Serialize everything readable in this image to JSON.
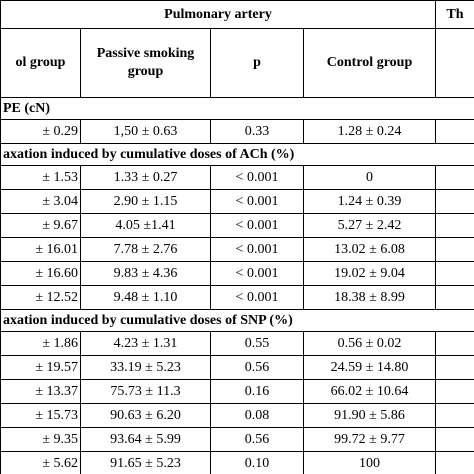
{
  "header": {
    "title": "Pulmonary artery",
    "title2": "Th"
  },
  "columns": [
    "ol group",
    "Passive smoking group",
    "p",
    "Control group"
  ],
  "sections": [
    {
      "title": "PE (cN)",
      "rows": [
        [
          "± 0.29",
          "1,50 ± 0.63",
          "0.33",
          "1.28 ± 0.24"
        ]
      ]
    },
    {
      "title": "axation induced by cumulative doses of ACh (%)",
      "rows": [
        [
          "± 1.53",
          "1.33 ± 0.27",
          "< 0.001",
          "0"
        ],
        [
          "± 3.04",
          "2.90 ± 1.15",
          "< 0.001",
          "1.24 ± 0.39"
        ],
        [
          "± 9.67",
          "4.05 ±1.41",
          "< 0.001",
          "5.27 ± 2.42"
        ],
        [
          "± 16.01",
          "7.78 ± 2.76",
          "< 0.001",
          "13.02 ± 6.08"
        ],
        [
          "± 16.60",
          "9.83 ± 4.36",
          "< 0.001",
          "19.02 ± 9.04"
        ],
        [
          "± 12.52",
          "9.48 ± 1.10",
          "< 0.001",
          "18.38 ± 8.99"
        ]
      ]
    },
    {
      "title": "axation induced by cumulative doses of SNP (%)",
      "rows": [
        [
          "± 1.86",
          "4.23 ± 1.31",
          "0.55",
          "0.56 ± 0.02"
        ],
        [
          "± 19.57",
          "33.19 ± 5.23",
          "0.56",
          "24.59 ± 14.80"
        ],
        [
          "± 13.37",
          "75.73 ± 11.3",
          "0.16",
          "66.02 ± 10.64"
        ],
        [
          "± 15.73",
          "90.63 ± 6.20",
          "0.08",
          "91.90 ± 5.86"
        ],
        [
          "± 9.35",
          "93.64 ± 5.99",
          "0.56",
          "99.72 ± 9.77"
        ],
        [
          "± 5.62",
          "91.65 ± 5.23",
          "0.10",
          "100"
        ]
      ]
    }
  ]
}
